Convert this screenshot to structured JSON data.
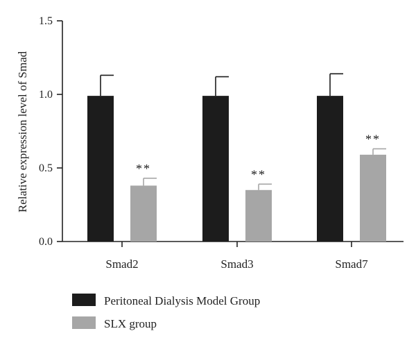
{
  "chart_data": {
    "type": "bar",
    "title": "",
    "xlabel": "",
    "ylabel": "Relative expression level of Smad",
    "ylim": [
      0,
      1.5
    ],
    "yticks": [
      "0.0",
      "0.5",
      "1.0",
      "1.5"
    ],
    "ytick_values": [
      0,
      0.5,
      1.0,
      1.5
    ],
    "categories": [
      "Smad2",
      "Smad3",
      "Smad7"
    ],
    "series": [
      {
        "name": "Peritoneal Dialysis Model Group",
        "color": "#1c1c1c",
        "values": [
          0.99,
          0.99,
          0.99
        ],
        "errors": [
          0.14,
          0.13,
          0.15
        ],
        "annotations": [
          "",
          "",
          ""
        ]
      },
      {
        "name": "SLX group",
        "color": "#a6a6a6",
        "values": [
          0.38,
          0.35,
          0.59
        ],
        "errors": [
          0.05,
          0.04,
          0.04
        ],
        "annotations": [
          "**",
          "**",
          "**"
        ]
      }
    ],
    "legend_position": "bottom-left",
    "grid": false
  }
}
